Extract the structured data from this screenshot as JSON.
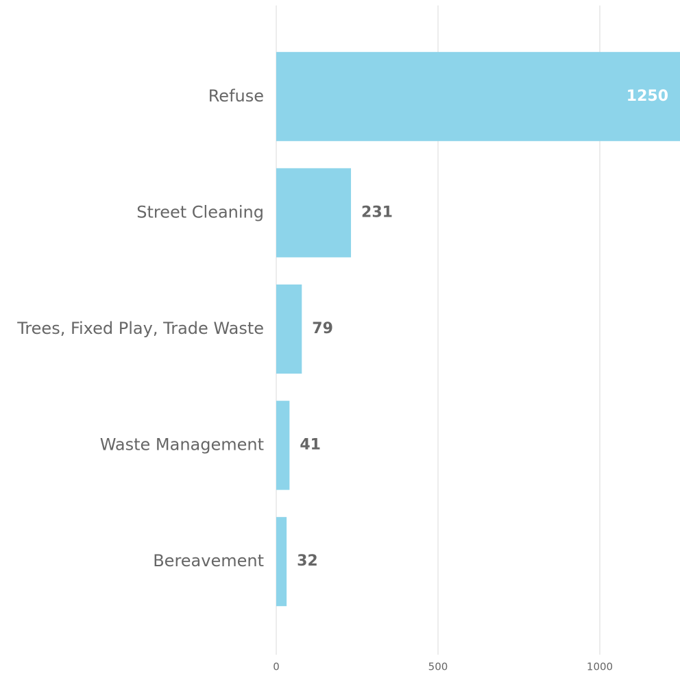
{
  "chart_data": {
    "type": "bar",
    "orientation": "horizontal",
    "categories": [
      "Refuse",
      "Street Cleaning",
      "Trees, Fixed Play, Trade Waste",
      "Waste Management",
      "Bereavement"
    ],
    "values": [
      1250,
      231,
      79,
      41,
      32
    ],
    "color": "#8dd4ea",
    "xlim": [
      0,
      1250
    ],
    "xticks": [
      0,
      500,
      1000
    ],
    "grid": true
  }
}
